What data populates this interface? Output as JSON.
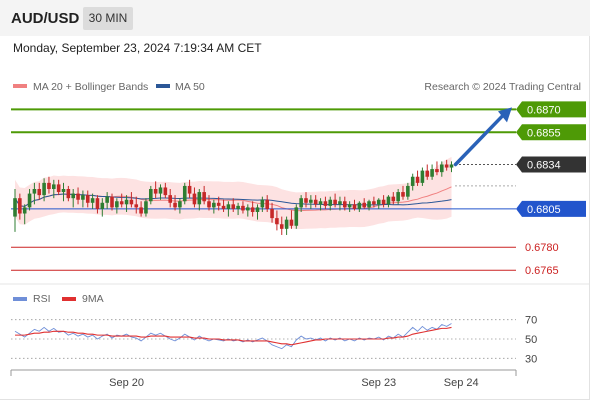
{
  "header": {
    "symbol": "AUD/USD",
    "timeframe": "30 MIN",
    "datetime": "Monday, September 23, 2024 7:19:34 AM CET"
  },
  "legend": {
    "ma20_label": "MA 20 + Bollinger Bands",
    "ma50_label": "MA 50",
    "credit": "Research © 2024 Trading Central",
    "ma20_color": "#f08080",
    "ma50_color": "#2b5797"
  },
  "rsi_legend": {
    "rsi_label": "RSI",
    "ma_label": "9MA",
    "rsi_color": "#6f8fd8",
    "ma_color": "#e03030"
  },
  "chart_data": {
    "type": "candlestick",
    "y_range": [
      0.6756,
      0.688
    ],
    "current_price": 0.6834,
    "levels": [
      {
        "value": 0.687,
        "label": "0.6870",
        "kind": "resistance",
        "color": "#4e9a06"
      },
      {
        "value": 0.6855,
        "label": "0.6855",
        "kind": "resistance",
        "color": "#4e9a06"
      },
      {
        "value": 0.6834,
        "label": "0.6834",
        "kind": "current",
        "color": "#333333"
      },
      {
        "value": 0.6805,
        "label": "0.6805",
        "kind": "pivot",
        "color": "#2255cc"
      },
      {
        "value": 0.678,
        "label": "0.6780",
        "kind": "support",
        "color": "#cc2222"
      },
      {
        "value": 0.6765,
        "label": "0.6765",
        "kind": "support",
        "color": "#cc2222"
      }
    ],
    "x_labels": [
      "Sep 20",
      "Sep 23",
      "Sep 24"
    ],
    "x_label_index": [
      23,
      75,
      92
    ],
    "candles": [
      [
        0.68,
        0.6818,
        0.679,
        0.6812
      ],
      [
        0.6812,
        0.6815,
        0.6798,
        0.6802
      ],
      [
        0.6802,
        0.6808,
        0.6795,
        0.6806
      ],
      [
        0.6806,
        0.6818,
        0.6804,
        0.6815
      ],
      [
        0.6815,
        0.6822,
        0.6808,
        0.6818
      ],
      [
        0.6818,
        0.6822,
        0.6811,
        0.6814
      ],
      [
        0.6814,
        0.6825,
        0.681,
        0.6822
      ],
      [
        0.6822,
        0.6826,
        0.6815,
        0.6818
      ],
      [
        0.6818,
        0.6824,
        0.6812,
        0.6821
      ],
      [
        0.6821,
        0.6824,
        0.6814,
        0.6816
      ],
      [
        0.6816,
        0.6822,
        0.681,
        0.6818
      ],
      [
        0.6818,
        0.682,
        0.681,
        0.6812
      ],
      [
        0.6812,
        0.6818,
        0.6806,
        0.6815
      ],
      [
        0.6815,
        0.6819,
        0.6808,
        0.6811
      ],
      [
        0.6811,
        0.6817,
        0.6806,
        0.6814
      ],
      [
        0.6814,
        0.6817,
        0.6806,
        0.6809
      ],
      [
        0.6809,
        0.6815,
        0.6805,
        0.6812
      ],
      [
        0.6812,
        0.6814,
        0.6802,
        0.6805
      ],
      [
        0.6805,
        0.6812,
        0.68,
        0.6809
      ],
      [
        0.6809,
        0.6816,
        0.6805,
        0.6813
      ],
      [
        0.6813,
        0.6815,
        0.6804,
        0.6806
      ],
      [
        0.6806,
        0.6812,
        0.6802,
        0.681
      ],
      [
        0.681,
        0.6815,
        0.6806,
        0.6808
      ],
      [
        0.6808,
        0.6814,
        0.6803,
        0.6811
      ],
      [
        0.6811,
        0.6816,
        0.6806,
        0.6808
      ],
      [
        0.6808,
        0.6813,
        0.6802,
        0.6806
      ],
      [
        0.6806,
        0.681,
        0.68,
        0.6802
      ],
      [
        0.6802,
        0.6812,
        0.68,
        0.681
      ],
      [
        0.681,
        0.682,
        0.6808,
        0.6818
      ],
      [
        0.6818,
        0.6823,
        0.6812,
        0.6815
      ],
      [
        0.6815,
        0.6821,
        0.6811,
        0.6819
      ],
      [
        0.6819,
        0.6822,
        0.6812,
        0.6814
      ],
      [
        0.6814,
        0.6818,
        0.6806,
        0.6809
      ],
      [
        0.6809,
        0.6814,
        0.6804,
        0.6806
      ],
      [
        0.6806,
        0.6812,
        0.6802,
        0.681
      ],
      [
        0.681,
        0.6822,
        0.6808,
        0.682
      ],
      [
        0.682,
        0.6824,
        0.6812,
        0.6815
      ],
      [
        0.6815,
        0.6819,
        0.6806,
        0.6808
      ],
      [
        0.6808,
        0.6818,
        0.6804,
        0.6816
      ],
      [
        0.6816,
        0.682,
        0.6808,
        0.681
      ],
      [
        0.681,
        0.6814,
        0.6804,
        0.6806
      ],
      [
        0.6806,
        0.6811,
        0.6802,
        0.6809
      ],
      [
        0.6809,
        0.6813,
        0.6804,
        0.6807
      ],
      [
        0.6807,
        0.6811,
        0.6803,
        0.6805
      ],
      [
        0.6805,
        0.681,
        0.68,
        0.6808
      ],
      [
        0.6808,
        0.6812,
        0.6803,
        0.6805
      ],
      [
        0.6805,
        0.6809,
        0.6801,
        0.6807
      ],
      [
        0.6807,
        0.681,
        0.6802,
        0.6804
      ],
      [
        0.6804,
        0.6808,
        0.68,
        0.6806
      ],
      [
        0.6806,
        0.681,
        0.68,
        0.6803
      ],
      [
        0.6803,
        0.6808,
        0.6798,
        0.6806
      ],
      [
        0.6806,
        0.6813,
        0.6803,
        0.6811
      ],
      [
        0.6811,
        0.6814,
        0.6803,
        0.6805
      ],
      [
        0.6805,
        0.6809,
        0.6796,
        0.6799
      ],
      [
        0.6799,
        0.6804,
        0.6791,
        0.6795
      ],
      [
        0.6795,
        0.68,
        0.6788,
        0.6792
      ],
      [
        0.6792,
        0.68,
        0.6788,
        0.6798
      ],
      [
        0.6798,
        0.6804,
        0.6792,
        0.6794
      ],
      [
        0.6794,
        0.6808,
        0.6792,
        0.6806
      ],
      [
        0.6806,
        0.6814,
        0.6803,
        0.6812
      ],
      [
        0.6812,
        0.6816,
        0.6806,
        0.6809
      ],
      [
        0.6809,
        0.6814,
        0.6805,
        0.6811
      ],
      [
        0.6811,
        0.6814,
        0.6806,
        0.6808
      ],
      [
        0.6808,
        0.6812,
        0.6804,
        0.681
      ],
      [
        0.681,
        0.6813,
        0.6805,
        0.6807
      ],
      [
        0.6807,
        0.6813,
        0.6804,
        0.6811
      ],
      [
        0.6811,
        0.6815,
        0.6806,
        0.6808
      ],
      [
        0.6808,
        0.6813,
        0.6804,
        0.681
      ],
      [
        0.681,
        0.6813,
        0.6804,
        0.6806
      ],
      [
        0.6806,
        0.681,
        0.6803,
        0.6808
      ],
      [
        0.6808,
        0.6811,
        0.6804,
        0.6805
      ],
      [
        0.6805,
        0.681,
        0.6803,
        0.6809
      ],
      [
        0.6809,
        0.6812,
        0.6805,
        0.6806
      ],
      [
        0.6806,
        0.6811,
        0.6804,
        0.681
      ],
      [
        0.681,
        0.6813,
        0.6806,
        0.6808
      ],
      [
        0.6808,
        0.6812,
        0.6805,
        0.6811
      ],
      [
        0.6811,
        0.6814,
        0.6806,
        0.6808
      ],
      [
        0.6808,
        0.6814,
        0.6806,
        0.6813
      ],
      [
        0.6813,
        0.6816,
        0.6808,
        0.681
      ],
      [
        0.681,
        0.6818,
        0.6808,
        0.6816
      ],
      [
        0.6816,
        0.682,
        0.6811,
        0.6813
      ],
      [
        0.6813,
        0.6822,
        0.6811,
        0.682
      ],
      [
        0.682,
        0.6828,
        0.6817,
        0.6826
      ],
      [
        0.6826,
        0.683,
        0.682,
        0.6822
      ],
      [
        0.6822,
        0.6832,
        0.682,
        0.683
      ],
      [
        0.683,
        0.6834,
        0.6824,
        0.6826
      ],
      [
        0.6826,
        0.6834,
        0.6824,
        0.6831
      ],
      [
        0.6831,
        0.6836,
        0.6827,
        0.6829
      ],
      [
        0.6829,
        0.6836,
        0.6826,
        0.6834
      ],
      [
        0.6834,
        0.6837,
        0.683,
        0.6832
      ],
      [
        0.6832,
        0.6836,
        0.6829,
        0.6834
      ]
    ],
    "rsi": {
      "y_range": [
        20,
        80
      ],
      "ticks": [
        70,
        50,
        30
      ],
      "rsi_values": [
        58,
        55,
        52,
        56,
        60,
        58,
        62,
        58,
        61,
        57,
        58,
        54,
        56,
        53,
        55,
        52,
        54,
        50,
        53,
        55,
        51,
        54,
        53,
        55,
        52,
        51,
        48,
        52,
        56,
        54,
        56,
        53,
        50,
        48,
        51,
        55,
        52,
        49,
        53,
        50,
        48,
        50,
        49,
        48,
        50,
        48,
        49,
        47,
        49,
        47,
        49,
        51,
        48,
        44,
        42,
        40,
        44,
        42,
        49,
        53,
        50,
        51,
        49,
        51,
        48,
        51,
        49,
        51,
        48,
        50,
        48,
        51,
        49,
        51,
        50,
        52,
        49,
        53,
        51,
        55,
        52,
        57,
        62,
        58,
        63,
        59,
        62,
        60,
        65,
        63,
        66
      ],
      "ma_values": [
        54,
        54,
        54,
        55,
        56,
        56,
        57,
        57,
        58,
        58,
        58,
        57,
        57,
        56,
        56,
        55,
        55,
        54,
        54,
        54,
        53,
        53,
        53,
        53,
        53,
        53,
        52,
        52,
        53,
        53,
        53,
        53,
        52,
        52,
        52,
        52,
        52,
        51,
        51,
        51,
        50,
        50,
        50,
        49,
        49,
        49,
        49,
        48,
        48,
        48,
        48,
        48,
        48,
        47,
        46,
        45,
        45,
        44,
        45,
        46,
        47,
        48,
        49,
        49,
        50,
        50,
        50,
        50,
        50,
        50,
        50,
        50,
        50,
        50,
        50,
        50,
        50,
        51,
        51,
        52,
        52,
        53,
        55,
        56,
        57,
        58,
        59,
        60,
        61,
        61,
        62
      ]
    }
  }
}
